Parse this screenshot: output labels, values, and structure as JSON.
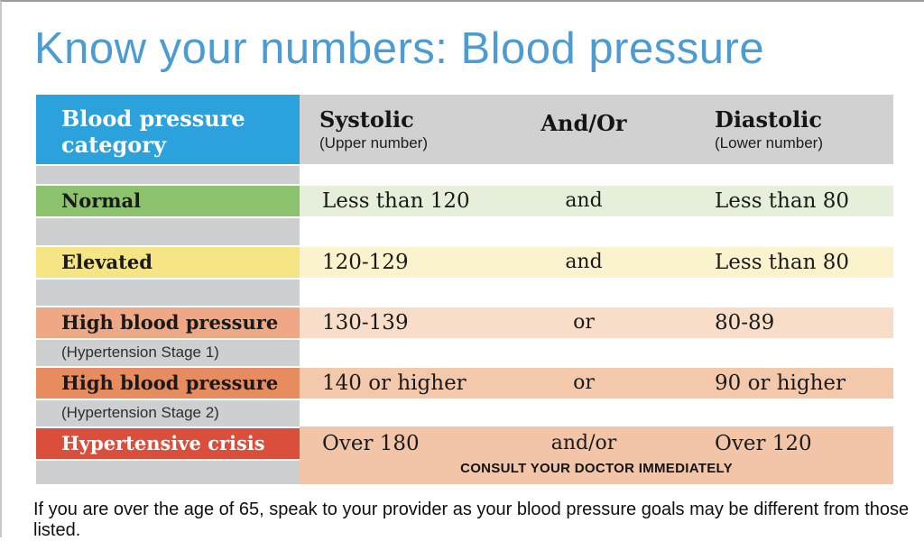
{
  "page": {
    "title": "Know your numbers: Blood pressure",
    "footnote": "If you are over the age of 65, speak to your provider as your blood pressure goals may be different from those listed."
  },
  "palette": {
    "title_blue": "#4C9CD2",
    "header_blue": "#2BA2DB",
    "header_gray": "#D1D1D1",
    "rail_gray": "#CDCFD0"
  },
  "table": {
    "header": {
      "category": "Blood pressure category",
      "systolic": "Systolic",
      "systolic_sub": "(Upper number)",
      "andor": "And/Or",
      "diastolic": "Diastolic",
      "diastolic_sub": "(Lower number)"
    },
    "rows": [
      {
        "category": "Normal",
        "subtitle": "",
        "systolic": "Less than 120",
        "connector": "and",
        "diastolic": "Less than 80",
        "color": "#8DC26E",
        "tint": "#E5EFD9",
        "label_color": "#1a1a1a"
      },
      {
        "category": "Elevated",
        "subtitle": "",
        "systolic": "120-129",
        "connector": "and",
        "diastolic": "Less than 80",
        "color": "#F6E584",
        "tint": "#FBF3CE",
        "label_color": "#1a1a1a"
      },
      {
        "category": "High blood pressure",
        "subtitle": "(Hypertension Stage 1)",
        "systolic": "130-139",
        "connector": "or",
        "diastolic": "80-89",
        "color": "#EFA886",
        "tint": "#F8DDC9",
        "label_color": "#1a1a1a"
      },
      {
        "category": "High blood pressure",
        "subtitle": "(Hypertension Stage 2)",
        "systolic": "140 or higher",
        "connector": "or",
        "diastolic": "90 or higher",
        "color": "#E78C5F",
        "tint": "#F3C8AB",
        "label_color": "#1a1a1a"
      },
      {
        "category": "Hypertensive crisis",
        "subtitle": "",
        "systolic": "Over 180",
        "connector": "and/or",
        "diastolic": "Over 120",
        "color": "#D94F3C",
        "tint": "#F2C5A8",
        "label_color": "#ffffff",
        "note": "CONSULT YOUR DOCTOR IMMEDIATELY"
      }
    ]
  }
}
